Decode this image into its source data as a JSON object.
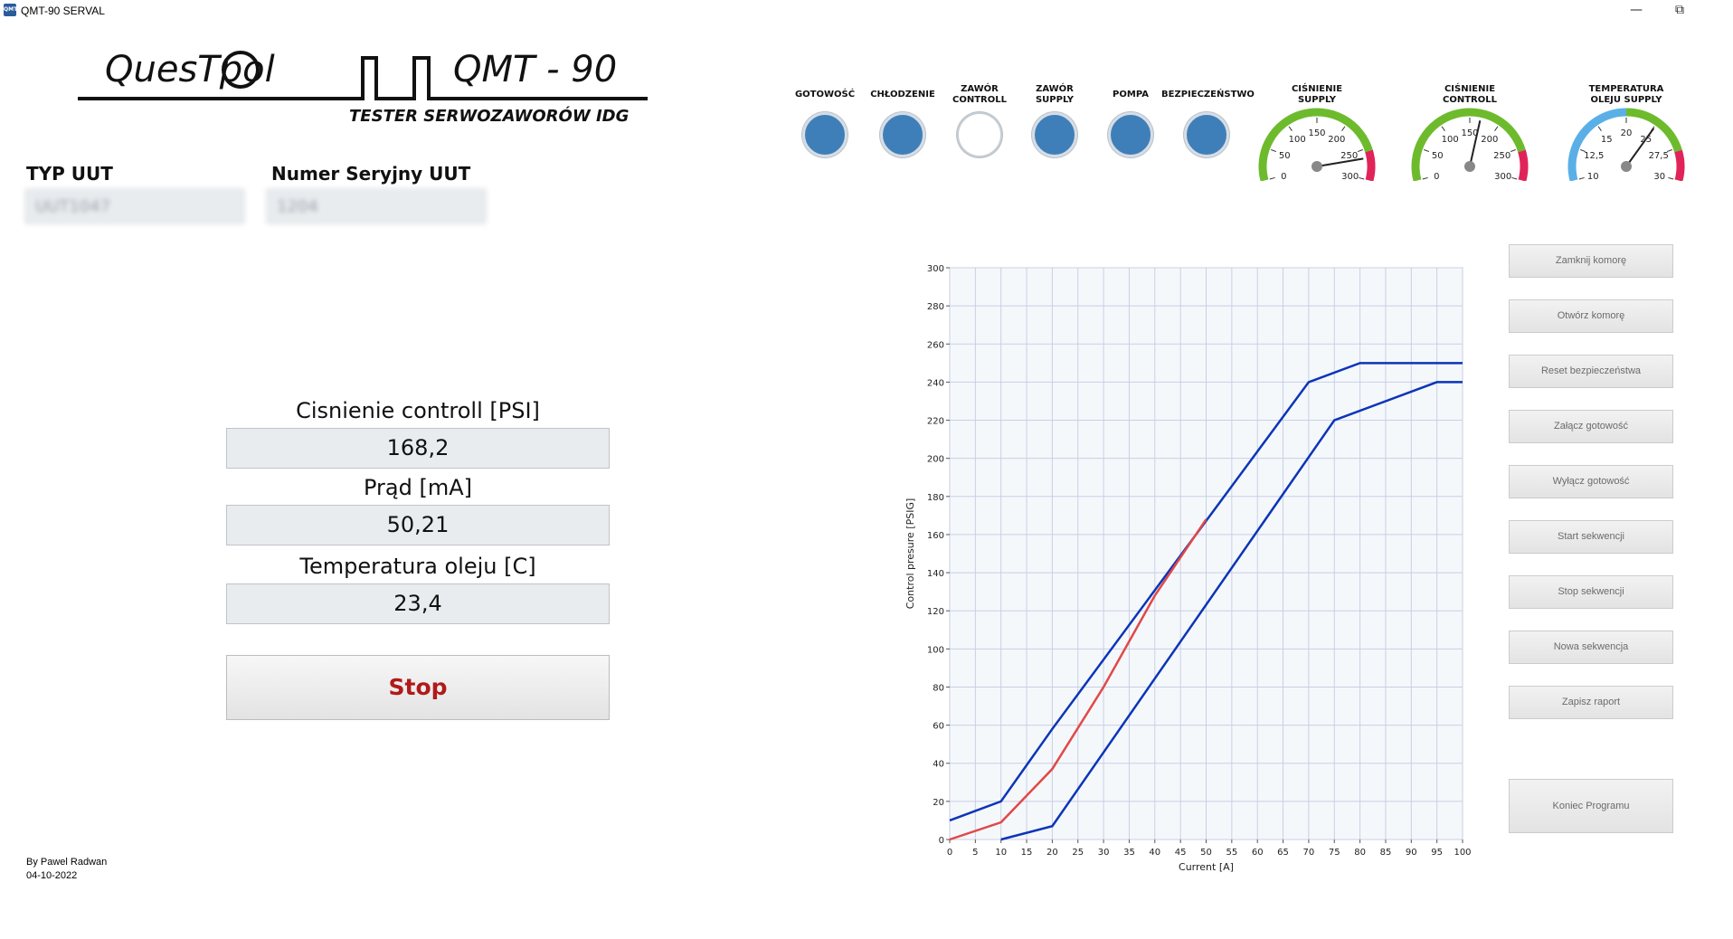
{
  "window": {
    "title": "QMT-90 SERVAL",
    "icon": "app-icon",
    "minimize": "—",
    "restore": "⧉"
  },
  "logo": {
    "brand": "QuesTpol",
    "model": "QMT - 90",
    "subtitle": "TESTER SERWOZAWORÓW IDG"
  },
  "uut": {
    "type_label": "TYP UUT",
    "type_value": "UUT1047",
    "serial_label": "Numer Seryjny UUT",
    "serial_value": "1204"
  },
  "measurements": [
    {
      "label": "Cisnienie controll [PSI]",
      "value": "168,2"
    },
    {
      "label": "Prąd [mA]",
      "value": "50,21"
    },
    {
      "label": "Temperatura oleju [C]",
      "value": "23,4"
    }
  ],
  "stop_button": "Stop",
  "author": {
    "line1": "By Pawel Radwan",
    "line2": "04-10-2022"
  },
  "indicators": [
    {
      "label": "GOTOWOŚĆ",
      "on": true
    },
    {
      "label": "CHŁODZENIE",
      "on": true
    },
    {
      "label": "ZAWÓR\nCONTROLL",
      "on": false
    },
    {
      "label": "ZAWÓR\nSUPPLY",
      "on": true
    },
    {
      "label": "POMPA",
      "on": true
    },
    {
      "label": "BEZPIECZEŃSTWO",
      "on": true
    }
  ],
  "colors": {
    "lamp_on": "#3f7fb9",
    "lamp_off": "#ffffff",
    "gauge_green": "#6dbb2d",
    "gauge_red": "#e0245a",
    "gauge_blue": "#5ab0e6",
    "limit_line": "#0b35b8",
    "measured_line": "#e24848"
  },
  "gauges": [
    {
      "label": "CIŚNIENIE\nSUPPLY",
      "ticks": [
        "0",
        "50",
        "100",
        "150",
        "200",
        "250",
        "300"
      ],
      "min": 0,
      "max": 300,
      "value": 265,
      "scheme": "green-red"
    },
    {
      "label": "CIŚNIENIE\nCONTROLL",
      "ticks": [
        "0",
        "50",
        "100",
        "150",
        "200",
        "250",
        "300"
      ],
      "min": 0,
      "max": 300,
      "value": 168,
      "scheme": "green-red"
    },
    {
      "label": "TEMPERATURA\nOLEJU SUPPLY",
      "ticks": [
        "10",
        "12,5",
        "15",
        "20",
        "25",
        "27,5",
        "30"
      ],
      "min": 10,
      "max": 30,
      "value": 23.4,
      "scheme": "blue-green-red"
    }
  ],
  "buttons": [
    "Zamknij komorę",
    "Otwórz komorę",
    "Reset bezpieczeństwa",
    "Załącz gotowość",
    "Wyłącz gotowość",
    "Start sekwencji",
    "Stop sekwencji",
    "Nowa sekwencja",
    "Zapisz raport"
  ],
  "end_button": "Koniec Programu",
  "chart_data": {
    "type": "line",
    "xlabel": "Current [A]",
    "ylabel": "Control presure [PSIG]",
    "xlim": [
      0,
      100
    ],
    "ylim": [
      0,
      300
    ],
    "xticks": [
      0,
      5,
      10,
      15,
      20,
      25,
      30,
      35,
      40,
      45,
      50,
      55,
      60,
      65,
      70,
      75,
      80,
      85,
      90,
      95,
      100
    ],
    "yticks": [
      0,
      20,
      40,
      60,
      80,
      100,
      120,
      140,
      160,
      180,
      200,
      220,
      240,
      260,
      280,
      300
    ],
    "grid": true,
    "series": [
      {
        "color": "#0b35b8",
        "points": [
          [
            0,
            10
          ],
          [
            10,
            20
          ],
          [
            20,
            58
          ],
          [
            70,
            240
          ],
          [
            80,
            250
          ],
          [
            100,
            250
          ]
        ]
      },
      {
        "color": "#0b35b8",
        "points": [
          [
            10,
            0
          ],
          [
            20,
            7
          ],
          [
            75,
            220
          ],
          [
            95,
            240
          ],
          [
            100,
            240
          ]
        ]
      },
      {
        "color": "#e24848",
        "points": [
          [
            0,
            0
          ],
          [
            10,
            9
          ],
          [
            20,
            37
          ],
          [
            30,
            80
          ],
          [
            40,
            128
          ],
          [
            50,
            168
          ]
        ]
      }
    ]
  }
}
